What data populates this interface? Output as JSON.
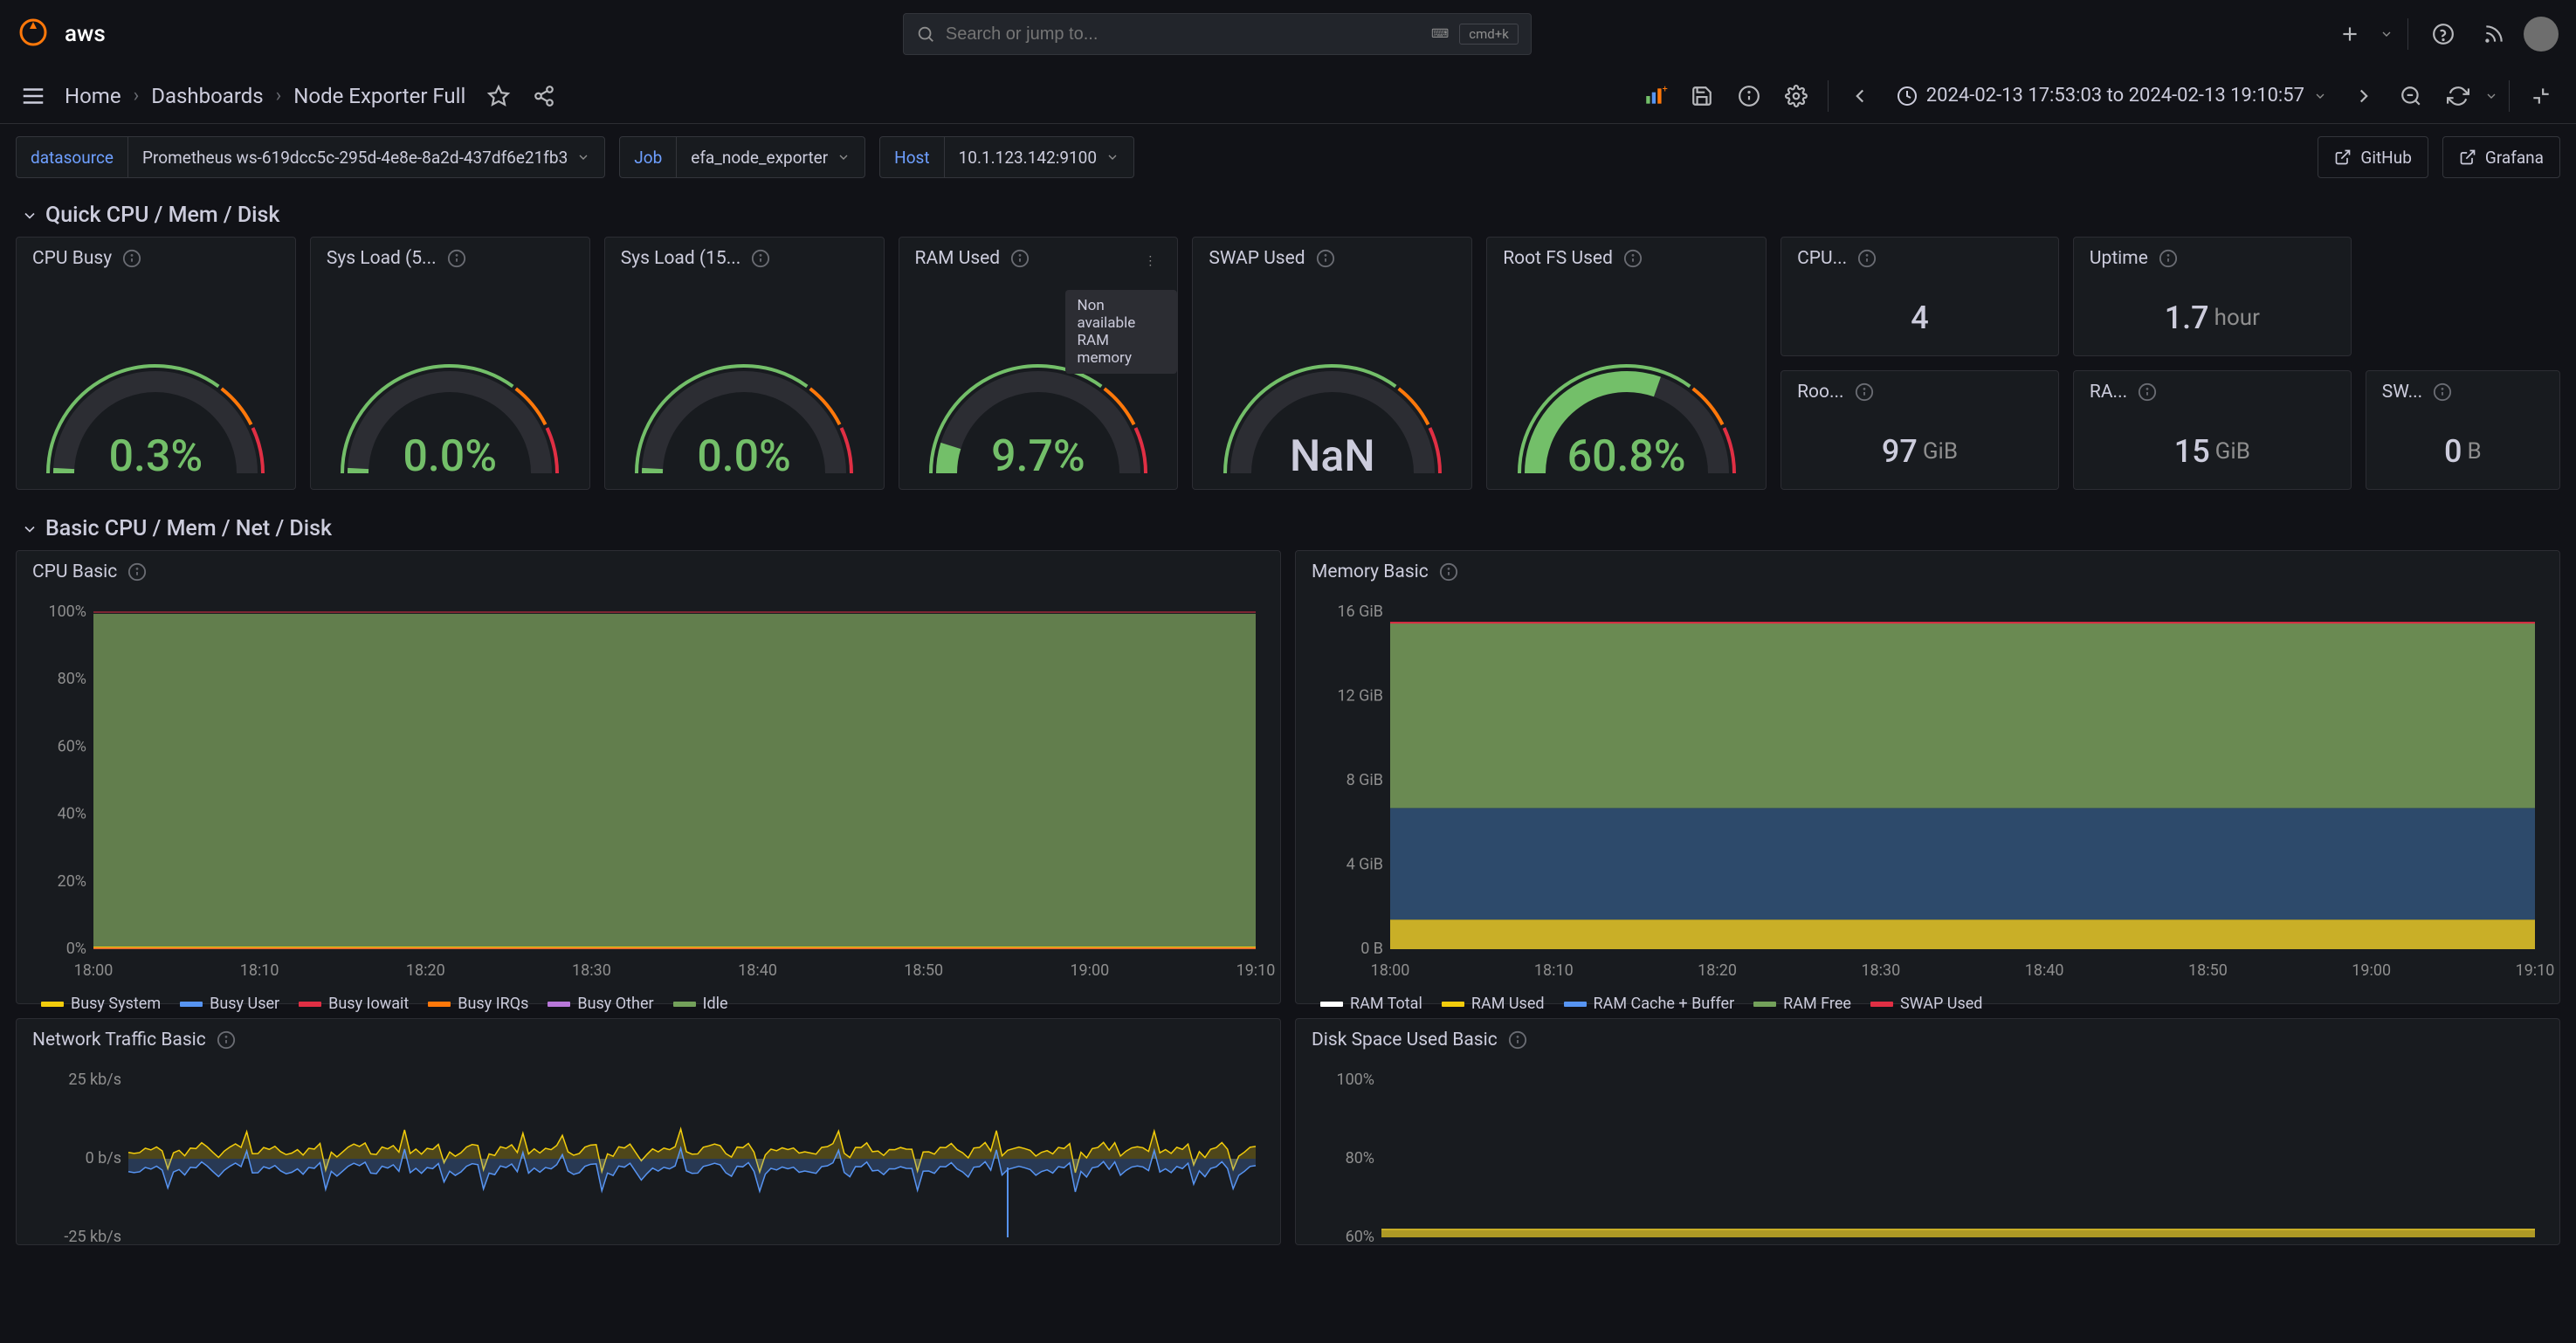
{
  "topbar": {
    "aws_label": "aws",
    "search_placeholder": "Search or jump to...",
    "kbd": "cmd+k"
  },
  "navbar": {
    "breadcrumb": [
      "Home",
      "Dashboards",
      "Node Exporter Full"
    ],
    "timerange": "2024-02-13 17:53:03 to 2024-02-13 19:10:57"
  },
  "vars": {
    "datasource_label": "datasource",
    "datasource_value": "Prometheus ws-619dcc5c-295d-4e8e-8a2d-437df6e21fb3",
    "job_label": "Job",
    "job_value": "efa_node_exporter",
    "host_label": "Host",
    "host_value": "10.1.123.142:9100",
    "link_github": "GitHub",
    "link_grafana": "Grafana"
  },
  "section1": "Quick CPU / Mem / Disk",
  "section2": "Basic CPU / Mem / Net / Disk",
  "tooltip_ram": "Non available RAM memory",
  "gauges": {
    "cpu_busy": {
      "title": "CPU Busy",
      "value": "0.3%",
      "pct": 0.3,
      "color": "#73bf69"
    },
    "sys_load5": {
      "title": "Sys Load (5...",
      "value": "0.0%",
      "pct": 0.0,
      "color": "#73bf69"
    },
    "sys_load15": {
      "title": "Sys Load (15...",
      "value": "0.0%",
      "pct": 0.0,
      "color": "#73bf69"
    },
    "ram_used": {
      "title": "RAM Used",
      "value": "9.7%",
      "pct": 9.7,
      "color": "#73bf69"
    },
    "swap_used": {
      "title": "SWAP Used",
      "value": "NaN",
      "pct": 0,
      "color": "#73bf69",
      "nan": true
    },
    "root_fs": {
      "title": "Root FS Used",
      "value": "60.8%",
      "pct": 60.8,
      "color": "#73bf69"
    }
  },
  "stats": {
    "cpu_cores": {
      "title": "CPU...",
      "value": "4",
      "unit": ""
    },
    "uptime": {
      "title": "Uptime",
      "value": "1.7",
      "unit": "hour"
    },
    "root_total": {
      "title": "Roo...",
      "value": "97",
      "unit": "GiB"
    },
    "ram_total": {
      "title": "RA...",
      "value": "15",
      "unit": "GiB"
    },
    "swap_total": {
      "title": "SW...",
      "value": "0",
      "unit": "B"
    }
  },
  "charts": {
    "cpu_basic": {
      "title": "CPU Basic",
      "yticks": [
        "100%",
        "80%",
        "60%",
        "40%",
        "20%",
        "0%"
      ],
      "xticks": [
        "18:00",
        "18:10",
        "18:20",
        "18:30",
        "18:40",
        "18:50",
        "19:00",
        "19:10"
      ],
      "legend": [
        {
          "label": "Busy System",
          "color": "#f2cc0c"
        },
        {
          "label": "Busy User",
          "color": "#5794f2"
        },
        {
          "label": "Busy Iowait",
          "color": "#e02f44"
        },
        {
          "label": "Busy IRQs",
          "color": "#ff780a"
        },
        {
          "label": "Busy Other",
          "color": "#b877d9"
        },
        {
          "label": "Idle",
          "color": "#73a05a"
        }
      ],
      "idle_pct": 99.5,
      "bg": "#181b1f"
    },
    "mem_basic": {
      "title": "Memory Basic",
      "yticks": [
        "16 GiB",
        "12 GiB",
        "8 GiB",
        "4 GiB",
        "0 B"
      ],
      "xticks": [
        "18:00",
        "18:10",
        "18:20",
        "18:30",
        "18:40",
        "18:50",
        "19:00",
        "19:10"
      ],
      "legend": [
        {
          "label": "RAM Total",
          "color": "#ffffff"
        },
        {
          "label": "RAM Used",
          "color": "#f2cc0c"
        },
        {
          "label": "RAM Cache + Buffer",
          "color": "#5794f2"
        },
        {
          "label": "RAM Free",
          "color": "#73a05a"
        },
        {
          "label": "SWAP Used",
          "color": "#e02f44"
        }
      ],
      "total_gib": 15.5,
      "used_gib": 1.4,
      "cache_gib": 5.3,
      "free_gib": 8.8
    },
    "net_basic": {
      "title": "Network Traffic Basic",
      "yticks": [
        "25 kb/s",
        "0 b/s",
        "-25 kb/s"
      ],
      "color_up": "#f2cc0c",
      "color_down": "#5794f2"
    },
    "disk_basic": {
      "title": "Disk Space Used Basic",
      "yticks": [
        "100%",
        "80%",
        "60%"
      ],
      "fill_pct": 62,
      "color": "#c9af27"
    }
  },
  "colors": {
    "panel_bg": "#181b1f",
    "border": "#2c2d33",
    "text": "#ccccdc",
    "muted": "#8e8e8e",
    "green": "#73bf69",
    "orange": "#ff780a",
    "red": "#e02f44"
  }
}
